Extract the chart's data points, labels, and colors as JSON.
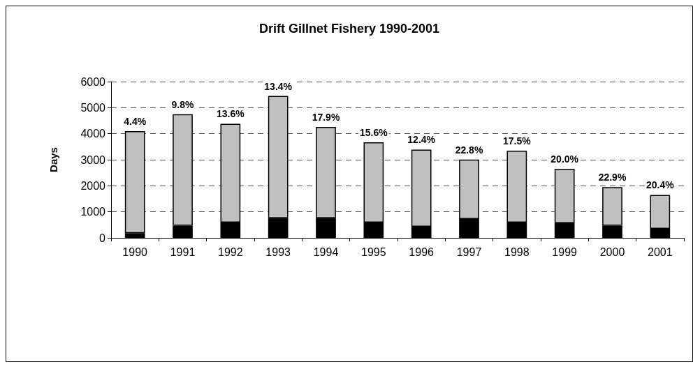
{
  "chart_data": {
    "type": "bar",
    "title": "Drift Gillnet Fishery 1990-2001",
    "ylabel": "Days",
    "stacked": true,
    "categories": [
      "1990",
      "1991",
      "1992",
      "1993",
      "1994",
      "1995",
      "1996",
      "1997",
      "1998",
      "1999",
      "2000",
      "2001"
    ],
    "series": [
      {
        "color": "#000000",
        "values": [
          180,
          470,
          590,
          760,
          760,
          590,
          430,
          720,
          590,
          570,
          470,
          350
        ]
      },
      {
        "color": "#c0c0c0",
        "values": [
          3920,
          4280,
          3790,
          4690,
          3500,
          3080,
          2960,
          2290,
          2760,
          2080,
          1480,
          1300
        ]
      }
    ],
    "annotations": [
      {
        "text": "4.4%",
        "x": "1990",
        "y": 4100
      },
      {
        "text": "9.8%",
        "x": "1991",
        "y": 4750
      },
      {
        "text": "13.6%",
        "x": "1992",
        "y": 4380
      },
      {
        "text": "13.4%",
        "x": "1993",
        "y": 5450
      },
      {
        "text": "17.9%",
        "x": "1994",
        "y": 4260
      },
      {
        "text": "15.6%",
        "x": "1995",
        "y": 3670
      },
      {
        "text": "12.4%",
        "x": "1996",
        "y": 3390
      },
      {
        "text": "22.8%",
        "x": "1997",
        "y": 3010
      },
      {
        "text": "17.5%",
        "x": "1998",
        "y": 3350
      },
      {
        "text": "20.0%",
        "x": "1999",
        "y": 2650
      },
      {
        "text": "22.9%",
        "x": "2000",
        "y": 1950
      },
      {
        "text": "20.4%",
        "x": "2001",
        "y": 1650
      }
    ],
    "ylim": [
      0,
      6000
    ],
    "yticks": [
      0,
      1000,
      2000,
      3000,
      4000,
      5000,
      6000
    ],
    "grid": "y"
  }
}
